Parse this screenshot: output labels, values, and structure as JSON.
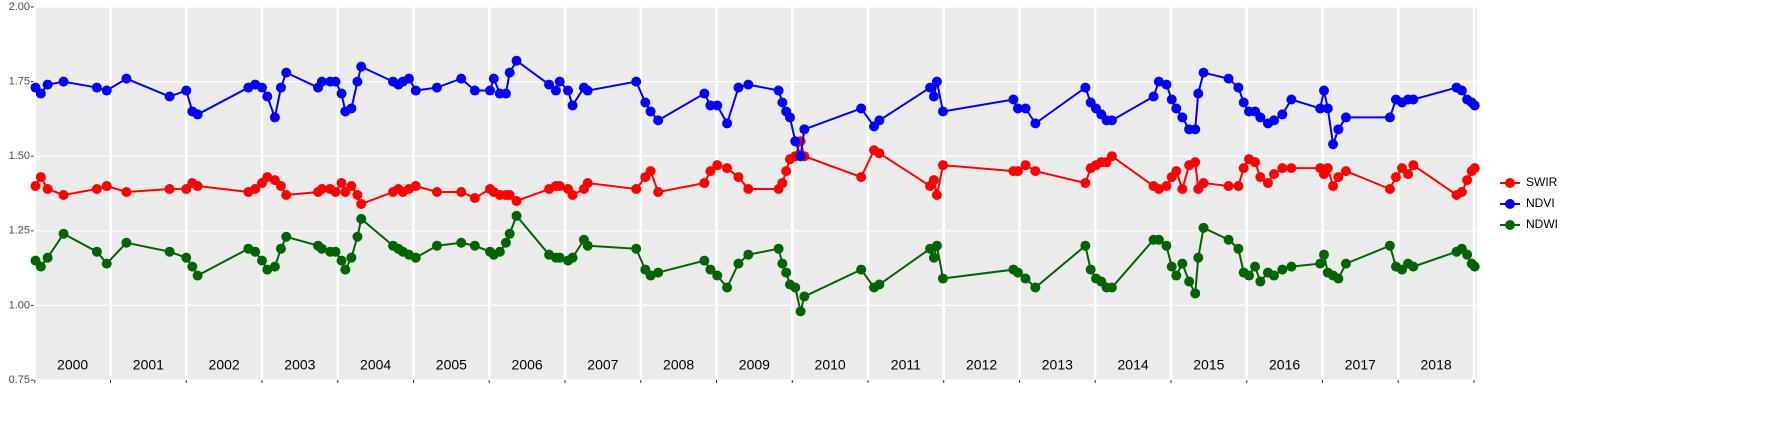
{
  "chart_data": {
    "type": "line",
    "x": [
      2000.01,
      2000.08,
      2000.17,
      2000.38,
      2000.82,
      2000.95,
      2001.21,
      2001.78,
      2002.0,
      2002.08,
      2002.15,
      2002.82,
      2002.91,
      2003.0,
      2003.07,
      2003.17,
      2003.25,
      2003.32,
      2003.74,
      2003.79,
      2003.9,
      2003.97,
      2004.05,
      2004.1,
      2004.18,
      2004.26,
      2004.31,
      2004.73,
      2004.8,
      2004.86,
      2004.94,
      2005.03,
      2005.31,
      2005.63,
      2005.81,
      2006.01,
      2006.06,
      2006.14,
      2006.22,
      2006.27,
      2006.36,
      2006.79,
      2006.88,
      2006.93,
      2007.04,
      2007.1,
      2007.25,
      2007.3,
      2007.94,
      2008.06,
      2008.13,
      2008.23,
      2008.84,
      2008.92,
      2009.01,
      2009.14,
      2009.29,
      2009.42,
      2009.82,
      2009.87,
      2009.92,
      2009.97,
      2010.04,
      2010.11,
      2010.16,
      2010.91,
      2011.08,
      2011.15,
      2011.82,
      2011.87,
      2011.91,
      2011.99,
      2012.92,
      2012.98,
      2013.08,
      2013.21,
      2013.87,
      2013.94,
      2014.01,
      2014.08,
      2014.15,
      2014.22,
      2014.77,
      2014.84,
      2014.94,
      2015.01,
      2015.07,
      2015.15,
      2015.24,
      2015.32,
      2015.36,
      2015.43,
      2015.76,
      2015.89,
      2015.96,
      2016.03,
      2016.11,
      2016.18,
      2016.28,
      2016.36,
      2016.47,
      2016.59,
      2016.97,
      2017.02,
      2017.07,
      2017.14,
      2017.21,
      2017.31,
      2017.89,
      2017.97,
      2018.05,
      2018.13,
      2018.2,
      2018.77,
      2018.84,
      2018.91,
      2018.97,
      2019.01
    ],
    "series": [
      {
        "name": "SWIR",
        "color": "#ff0000",
        "values": [
          1.4,
          1.43,
          1.39,
          1.37,
          1.39,
          1.4,
          1.38,
          1.39,
          1.39,
          1.41,
          1.4,
          1.38,
          1.39,
          1.41,
          1.43,
          1.42,
          1.4,
          1.37,
          1.38,
          1.39,
          1.39,
          1.38,
          1.41,
          1.38,
          1.4,
          1.37,
          1.34,
          1.38,
          1.39,
          1.38,
          1.39,
          1.4,
          1.38,
          1.38,
          1.36,
          1.39,
          1.38,
          1.37,
          1.37,
          1.37,
          1.35,
          1.39,
          1.4,
          1.4,
          1.39,
          1.37,
          1.39,
          1.41,
          1.39,
          1.43,
          1.45,
          1.38,
          1.41,
          1.45,
          1.47,
          1.46,
          1.43,
          1.39,
          1.39,
          1.41,
          1.45,
          1.49,
          1.5,
          1.55,
          1.5,
          1.43,
          1.52,
          1.51,
          1.4,
          1.42,
          1.37,
          1.47,
          1.45,
          1.45,
          1.47,
          1.45,
          1.41,
          1.46,
          1.47,
          1.48,
          1.48,
          1.5,
          1.4,
          1.39,
          1.4,
          1.43,
          1.45,
          1.39,
          1.47,
          1.48,
          1.39,
          1.41,
          1.4,
          1.4,
          1.46,
          1.49,
          1.48,
          1.43,
          1.41,
          1.44,
          1.46,
          1.46,
          1.46,
          1.44,
          1.46,
          1.4,
          1.43,
          1.45,
          1.39,
          1.43,
          1.46,
          1.44,
          1.47,
          1.37,
          1.38,
          1.42,
          1.45,
          1.46
        ]
      },
      {
        "name": "NDVI",
        "color": "#0000ff",
        "values": [
          1.73,
          1.71,
          1.74,
          1.75,
          1.73,
          1.72,
          1.76,
          1.7,
          1.72,
          1.65,
          1.64,
          1.73,
          1.74,
          1.73,
          1.7,
          1.63,
          1.73,
          1.78,
          1.73,
          1.75,
          1.75,
          1.75,
          1.71,
          1.65,
          1.66,
          1.75,
          1.8,
          1.75,
          1.74,
          1.75,
          1.76,
          1.72,
          1.73,
          1.76,
          1.72,
          1.72,
          1.76,
          1.71,
          1.71,
          1.78,
          1.82,
          1.74,
          1.72,
          1.75,
          1.72,
          1.67,
          1.73,
          1.72,
          1.75,
          1.68,
          1.65,
          1.62,
          1.71,
          1.67,
          1.67,
          1.61,
          1.73,
          1.74,
          1.72,
          1.68,
          1.65,
          1.63,
          1.55,
          1.5,
          1.59,
          1.66,
          1.6,
          1.62,
          1.73,
          1.7,
          1.75,
          1.65,
          1.69,
          1.66,
          1.66,
          1.61,
          1.73,
          1.68,
          1.66,
          1.64,
          1.62,
          1.62,
          1.7,
          1.75,
          1.74,
          1.69,
          1.66,
          1.63,
          1.59,
          1.59,
          1.71,
          1.78,
          1.76,
          1.73,
          1.68,
          1.65,
          1.65,
          1.63,
          1.61,
          1.62,
          1.64,
          1.69,
          1.66,
          1.72,
          1.66,
          1.54,
          1.59,
          1.63,
          1.63,
          1.69,
          1.68,
          1.69,
          1.69,
          1.73,
          1.72,
          1.69,
          1.68,
          1.67
        ]
      },
      {
        "name": "NDWI",
        "color": "#006400",
        "values": [
          1.15,
          1.13,
          1.16,
          1.24,
          1.18,
          1.14,
          1.21,
          1.18,
          1.16,
          1.13,
          1.1,
          1.19,
          1.18,
          1.15,
          1.12,
          1.13,
          1.19,
          1.23,
          1.2,
          1.19,
          1.18,
          1.18,
          1.15,
          1.12,
          1.16,
          1.23,
          1.29,
          1.2,
          1.19,
          1.18,
          1.17,
          1.16,
          1.2,
          1.21,
          1.2,
          1.18,
          1.17,
          1.18,
          1.21,
          1.24,
          1.3,
          1.17,
          1.16,
          1.16,
          1.15,
          1.16,
          1.22,
          1.2,
          1.19,
          1.12,
          1.1,
          1.11,
          1.15,
          1.12,
          1.1,
          1.06,
          1.14,
          1.17,
          1.19,
          1.14,
          1.11,
          1.07,
          1.06,
          0.98,
          1.03,
          1.12,
          1.06,
          1.07,
          1.19,
          1.16,
          1.2,
          1.09,
          1.12,
          1.11,
          1.09,
          1.06,
          1.2,
          1.12,
          1.09,
          1.08,
          1.06,
          1.06,
          1.22,
          1.22,
          1.2,
          1.13,
          1.1,
          1.14,
          1.08,
          1.04,
          1.16,
          1.26,
          1.22,
          1.19,
          1.11,
          1.1,
          1.13,
          1.08,
          1.11,
          1.1,
          1.12,
          1.13,
          1.14,
          1.17,
          1.11,
          1.1,
          1.09,
          1.14,
          1.2,
          1.13,
          1.12,
          1.14,
          1.13,
          1.18,
          1.19,
          1.17,
          1.14,
          1.13
        ]
      }
    ],
    "xlim": [
      1999.99,
      2019.04
    ],
    "xticks": [
      2000,
      2001,
      2002,
      2003,
      2004,
      2005,
      2006,
      2007,
      2008,
      2009,
      2010,
      2011,
      2012,
      2013,
      2014,
      2015,
      2016,
      2017,
      2018,
      2019
    ],
    "year_labels": [
      2000,
      2001,
      2002,
      2003,
      2004,
      2005,
      2006,
      2007,
      2008,
      2009,
      2010,
      2011,
      2012,
      2013,
      2014,
      2015,
      2016,
      2017,
      2018
    ],
    "ylim": [
      0.75,
      2.0
    ],
    "yticks": [
      {
        "value": 0.75,
        "label": "0.75"
      },
      {
        "value": 1.0,
        "label": "1.00"
      },
      {
        "value": 1.25,
        "label": "1.25"
      },
      {
        "value": 1.5,
        "label": "1.50"
      },
      {
        "value": 1.75,
        "label": "1.75"
      },
      {
        "value": 2.0,
        "label": "2.00"
      }
    ],
    "grid": true,
    "legend": "right"
  }
}
